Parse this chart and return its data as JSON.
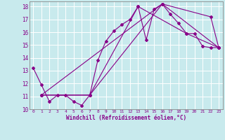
{
  "title": "",
  "xlabel": "Windchill (Refroidissement éolien,°C)",
  "ylabel": "",
  "background_color": "#c8eaed",
  "line_color": "#880088",
  "grid_color": "#aadddd",
  "spine_color": "#888888",
  "xlim": [
    -0.5,
    23.5
  ],
  "ylim": [
    10,
    18.4
  ],
  "xticks": [
    0,
    1,
    2,
    3,
    4,
    5,
    6,
    7,
    8,
    9,
    10,
    11,
    12,
    13,
    14,
    15,
    16,
    17,
    18,
    19,
    20,
    21,
    22,
    23
  ],
  "yticks": [
    10,
    11,
    12,
    13,
    14,
    15,
    16,
    17,
    18
  ],
  "series1": [
    [
      0,
      13.2
    ],
    [
      1,
      11.9
    ],
    [
      2,
      10.6
    ],
    [
      3,
      11.1
    ],
    [
      4,
      11.1
    ],
    [
      5,
      10.6
    ],
    [
      6,
      10.3
    ],
    [
      7,
      11.1
    ],
    [
      8,
      13.8
    ],
    [
      9,
      15.3
    ],
    [
      10,
      16.1
    ],
    [
      11,
      16.6
    ],
    [
      12,
      17.0
    ],
    [
      13,
      18.0
    ],
    [
      14,
      15.4
    ],
    [
      15,
      17.8
    ],
    [
      16,
      18.2
    ],
    [
      17,
      17.4
    ],
    [
      18,
      16.7
    ],
    [
      19,
      15.9
    ],
    [
      20,
      15.9
    ],
    [
      21,
      14.9
    ],
    [
      22,
      14.8
    ],
    [
      23,
      14.8
    ]
  ],
  "series2": [
    [
      1,
      11.1
    ],
    [
      7,
      11.1
    ],
    [
      13,
      18.0
    ],
    [
      19,
      15.9
    ],
    [
      23,
      14.8
    ]
  ],
  "series3": [
    [
      1,
      11.1
    ],
    [
      7,
      11.1
    ],
    [
      16,
      18.2
    ],
    [
      22,
      17.2
    ],
    [
      23,
      14.8
    ]
  ],
  "series4": [
    [
      1,
      11.1
    ],
    [
      16,
      18.2
    ],
    [
      23,
      14.8
    ]
  ]
}
